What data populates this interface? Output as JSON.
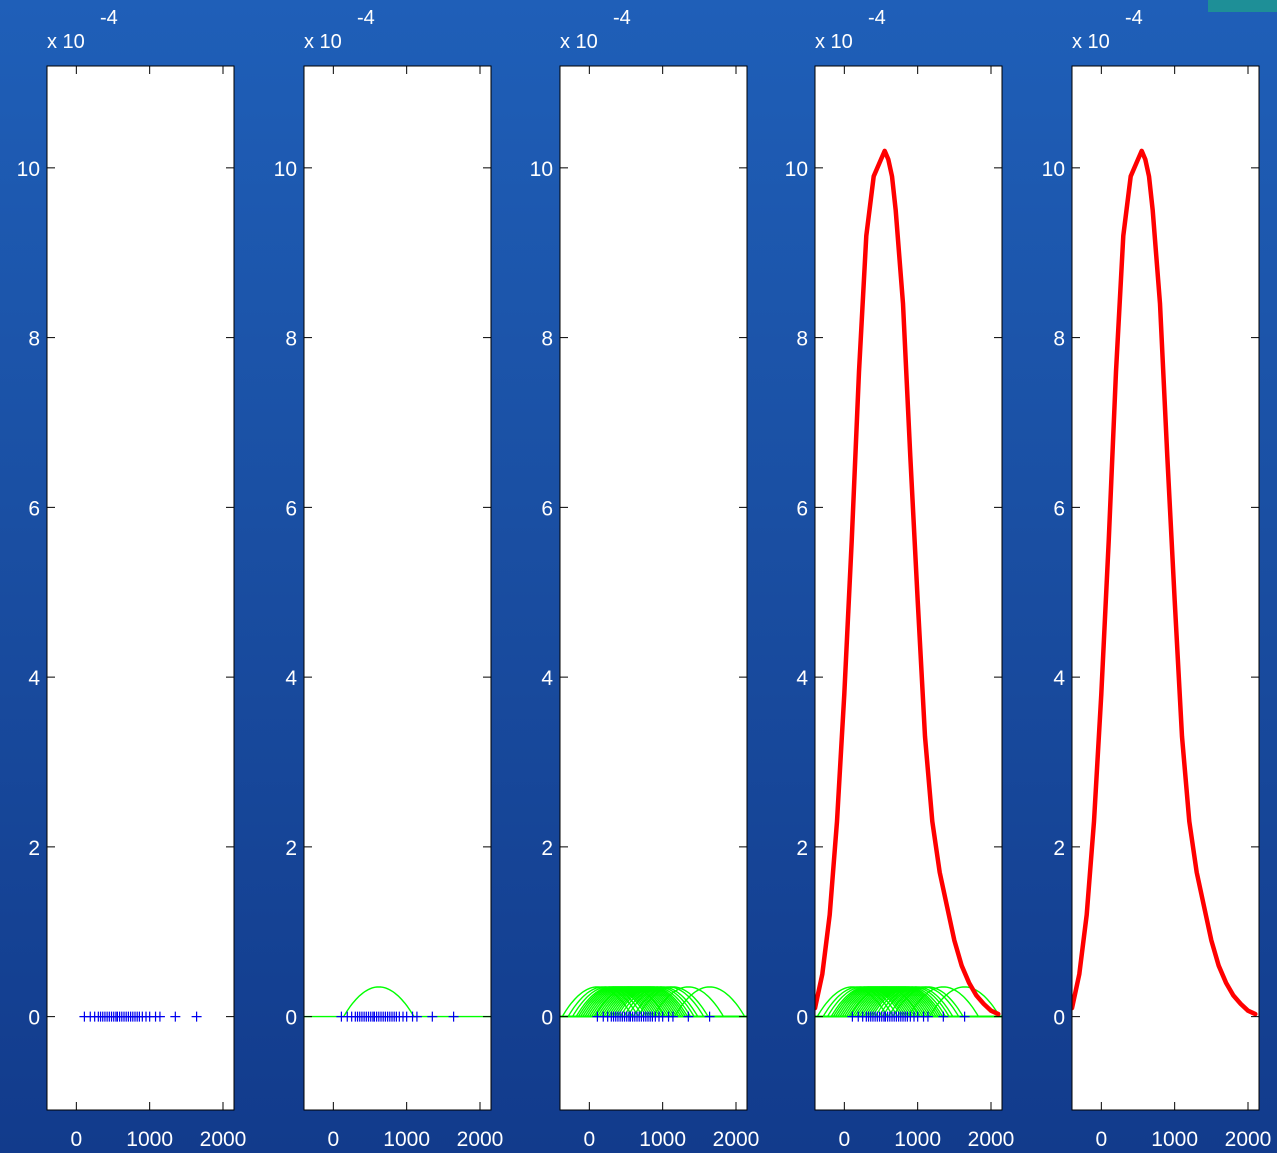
{
  "chart_data": [
    {
      "type": "scatter",
      "stage": "data points only",
      "xlim": [
        -400,
        2150
      ],
      "ylim": [
        -1.1,
        11.2
      ],
      "xticks": [
        0,
        1000,
        2000
      ],
      "yticks": [
        0,
        2,
        4,
        6,
        8,
        10
      ],
      "ytick_labels": [
        "0",
        "2",
        "4",
        "6",
        "8",
        "10"
      ],
      "y_scale_label": "x 10",
      "y_scale_exponent": "-4",
      "samples": [
        110,
        190,
        250,
        300,
        330,
        360,
        390,
        420,
        450,
        480,
        510,
        540,
        560,
        590,
        620,
        650,
        680,
        710,
        740,
        770,
        800,
        830,
        860,
        900,
        950,
        1000,
        1080,
        1140,
        1350,
        1640
      ],
      "marker_color": "#0000ee",
      "show_kernels": false,
      "show_sum": false
    },
    {
      "type": "line",
      "stage": "one kernel",
      "xlim": [
        -400,
        2150
      ],
      "ylim": [
        -1.1,
        11.2
      ],
      "xticks": [
        0,
        1000,
        2000
      ],
      "yticks": [
        0,
        2,
        4,
        6,
        8,
        10
      ],
      "ytick_labels": [
        "0",
        "2",
        "4",
        "6",
        "8",
        "10"
      ],
      "y_scale_label": "x 10",
      "y_scale_exponent": "-4",
      "samples": [
        110,
        190,
        250,
        300,
        330,
        360,
        390,
        420,
        450,
        480,
        510,
        540,
        560,
        590,
        620,
        650,
        680,
        710,
        740,
        770,
        800,
        830,
        860,
        900,
        950,
        1000,
        1080,
        1140,
        1350,
        1640
      ],
      "kernel_centers": [
        620
      ],
      "kernel_half_width": 480,
      "kernel_peak": 0.35,
      "kernel_color": "#00ff00",
      "marker_color": "#0000ee",
      "show_sum": false
    },
    {
      "type": "line",
      "stage": "all kernels",
      "xlim": [
        -400,
        2150
      ],
      "ylim": [
        -1.1,
        11.2
      ],
      "xticks": [
        0,
        1000,
        2000
      ],
      "yticks": [
        0,
        2,
        4,
        6,
        8,
        10
      ],
      "ytick_labels": [
        "0",
        "2",
        "4",
        "6",
        "8",
        "10"
      ],
      "y_scale_label": "x 10",
      "y_scale_exponent": "-4",
      "samples": [
        110,
        190,
        250,
        300,
        330,
        360,
        390,
        420,
        450,
        480,
        510,
        540,
        560,
        590,
        620,
        650,
        680,
        710,
        740,
        770,
        800,
        830,
        860,
        900,
        950,
        1000,
        1080,
        1140,
        1350,
        1640
      ],
      "kernel_half_width": 480,
      "kernel_peak": 0.35,
      "kernel_color": "#00ff00",
      "marker_color": "#0000ee",
      "show_sum": false
    },
    {
      "type": "line",
      "stage": "kernels and sum",
      "xlim": [
        -400,
        2150
      ],
      "ylim": [
        -1.1,
        11.2
      ],
      "xticks": [
        0,
        1000,
        2000
      ],
      "yticks": [
        0,
        2,
        4,
        6,
        8,
        10
      ],
      "ytick_labels": [
        "0",
        "2",
        "4",
        "6",
        "8",
        "10"
      ],
      "y_scale_label": "x 10",
      "y_scale_exponent": "-4",
      "samples": [
        110,
        190,
        250,
        300,
        330,
        360,
        390,
        420,
        450,
        480,
        510,
        540,
        560,
        590,
        620,
        650,
        680,
        710,
        740,
        770,
        800,
        830,
        860,
        900,
        950,
        1000,
        1080,
        1140,
        1350,
        1640
      ],
      "kernel_half_width": 480,
      "kernel_peak": 0.35,
      "kernel_color": "#00ff00",
      "marker_color": "#0000ee",
      "sum_color": "#ff0000",
      "sum_curve": {
        "x": [
          -400,
          -300,
          -200,
          -100,
          0,
          100,
          200,
          300,
          400,
          500,
          550,
          600,
          650,
          700,
          800,
          900,
          1000,
          1100,
          1200,
          1300,
          1400,
          1500,
          1600,
          1700,
          1800,
          1900,
          2000,
          2100
        ],
        "y": [
          0.1,
          0.5,
          1.2,
          2.3,
          3.8,
          5.6,
          7.6,
          9.2,
          9.9,
          10.1,
          10.2,
          10.1,
          9.9,
          9.5,
          8.4,
          6.6,
          4.9,
          3.3,
          2.3,
          1.7,
          1.3,
          0.9,
          0.6,
          0.4,
          0.25,
          0.15,
          0.07,
          0.03
        ]
      }
    },
    {
      "type": "line",
      "stage": "sum only",
      "xlim": [
        -400,
        2150
      ],
      "ylim": [
        -1.1,
        11.2
      ],
      "xticks": [
        0,
        1000,
        2000
      ],
      "yticks": [
        0,
        2,
        4,
        6,
        8,
        10
      ],
      "ytick_labels": [
        "0",
        "2",
        "4",
        "6",
        "8",
        "10"
      ],
      "y_scale_label": "x 10",
      "y_scale_exponent": "-4",
      "sum_color": "#ff0000",
      "sum_curve": {
        "x": [
          -400,
          -300,
          -200,
          -100,
          0,
          100,
          200,
          300,
          400,
          500,
          550,
          600,
          650,
          700,
          800,
          900,
          1000,
          1100,
          1200,
          1300,
          1400,
          1500,
          1600,
          1700,
          1800,
          1900,
          2000,
          2100
        ],
        "y": [
          0.1,
          0.5,
          1.2,
          2.3,
          3.8,
          5.6,
          7.6,
          9.2,
          9.9,
          10.1,
          10.2,
          10.1,
          9.9,
          9.5,
          8.4,
          6.6,
          4.9,
          3.3,
          2.3,
          1.7,
          1.3,
          0.9,
          0.6,
          0.4,
          0.25,
          0.15,
          0.07,
          0.03
        ]
      }
    }
  ]
}
